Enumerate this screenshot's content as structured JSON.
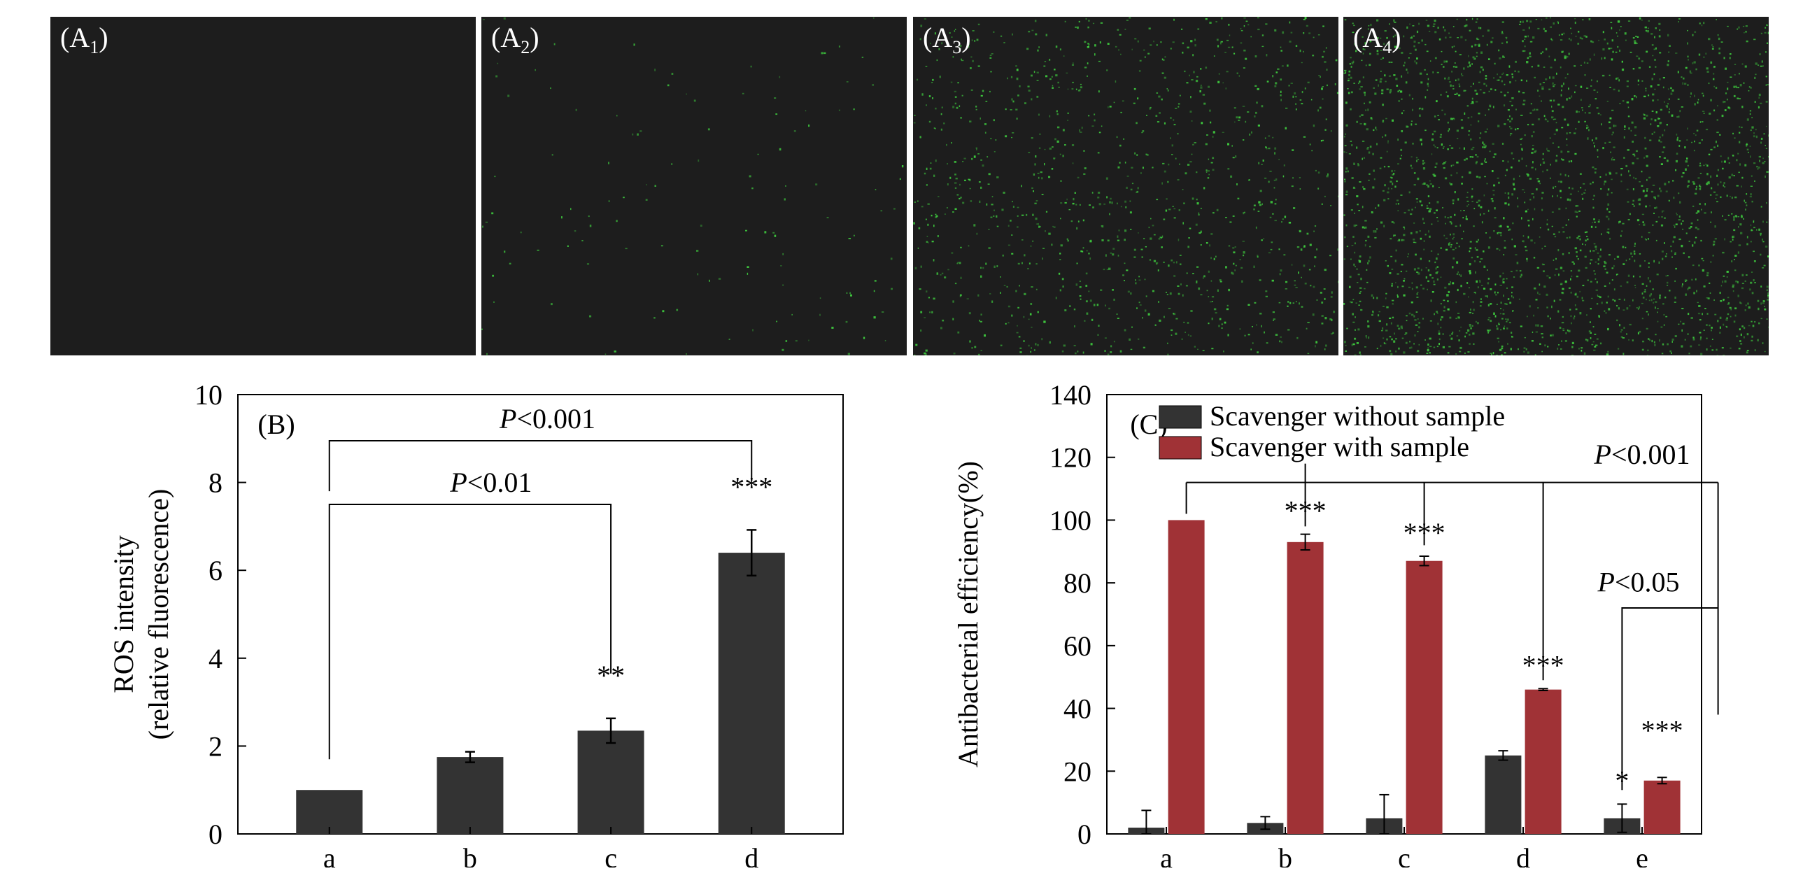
{
  "panels": [
    {
      "label_main": "(A",
      "label_sub": "1",
      "label_end": ")",
      "density": 0
    },
    {
      "label_main": "(A",
      "label_sub": "2",
      "label_end": ")",
      "density": 0.05
    },
    {
      "label_main": "(A",
      "label_sub": "3",
      "label_end": ")",
      "density": 0.45
    },
    {
      "label_main": "(A",
      "label_sub": "4",
      "label_end": ")",
      "density": 1.0
    }
  ],
  "colors": {
    "dark_bar": "#333333",
    "red_bar": "#a03236",
    "fluor": "#3fcf3f",
    "panel_bg": "#1d1d1d"
  },
  "chart_data": [
    {
      "type": "bar",
      "panel_label": "(B)",
      "categories": [
        "a",
        "b",
        "c",
        "d"
      ],
      "values": [
        1.0,
        1.75,
        2.35,
        6.4
      ],
      "errors": [
        0.0,
        0.12,
        0.28,
        0.52
      ],
      "significance": [
        "",
        "",
        "**",
        "***"
      ],
      "ylabel": [
        "ROS intensity",
        "(relative fluorescence)"
      ],
      "ylim": [
        0,
        10
      ],
      "yticks": [
        0,
        2,
        4,
        6,
        8,
        10
      ],
      "brackets": [
        {
          "label_p": "P",
          "label_rest": "<0.01",
          "from": "a",
          "to": "c"
        },
        {
          "label_p": "P",
          "label_rest": "<0.001",
          "from": "a",
          "to": "d"
        }
      ]
    },
    {
      "type": "bar",
      "panel_label": "(C)",
      "categories": [
        "a",
        "b",
        "c",
        "d",
        "e"
      ],
      "series": [
        {
          "name": "Scavenger without sample",
          "values": [
            2,
            3.5,
            5,
            25,
            5
          ],
          "errors": [
            5.5,
            2,
            7.5,
            1.5,
            4.5
          ],
          "significance": [
            "",
            "",
            "",
            "",
            "*"
          ]
        },
        {
          "name": "Scavenger with sample",
          "values": [
            100,
            93,
            87,
            46,
            17
          ],
          "errors": [
            0,
            2.5,
            1.5,
            0.3,
            1
          ],
          "significance": [
            "",
            "***",
            "***",
            "***",
            "***"
          ]
        }
      ],
      "ylabel": "Antibacterial efficiency(%)",
      "ylim": [
        0,
        140
      ],
      "yticks": [
        0,
        20,
        40,
        60,
        80,
        100,
        120,
        140
      ],
      "brackets": [
        {
          "label_p": "P",
          "label_rest": "<0.001"
        },
        {
          "label_p": "P",
          "label_rest": "<0.05"
        }
      ],
      "legend": "top-left"
    }
  ]
}
